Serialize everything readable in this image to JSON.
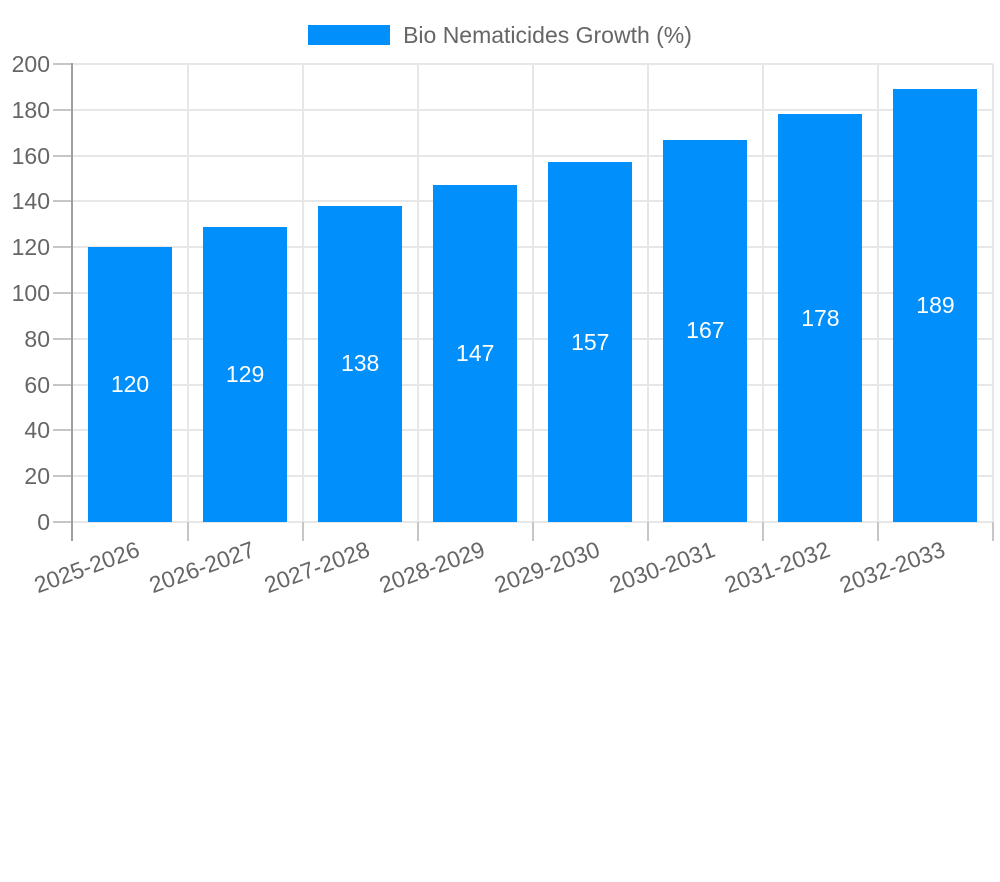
{
  "chart_data": {
    "type": "bar",
    "title": "Bio Nematicides Growth (%)",
    "legend": {
      "label": "Bio Nematicides Growth (%)",
      "position": "top",
      "marker": "rectangle"
    },
    "categories": [
      "2025-2026",
      "2026-2027",
      "2027-2028",
      "2028-2029",
      "2029-2030",
      "2030-2031",
      "2031-2032",
      "2032-2033"
    ],
    "series": [
      {
        "name": "Bio Nematicides Growth (%)",
        "values": [
          120,
          129,
          138,
          147,
          157,
          167,
          178,
          189
        ]
      }
    ],
    "value_labels": [
      "120",
      "129",
      "138",
      "147",
      "157",
      "167",
      "178",
      "189"
    ],
    "xlabel": "",
    "ylabel": "",
    "ylim": [
      0,
      200
    ],
    "y_ticks": [
      0,
      20,
      40,
      60,
      80,
      100,
      120,
      140,
      160,
      180,
      200
    ],
    "grid": "horizontal and vertical category boundaries",
    "x_tick_label_rotation_deg": -20,
    "colors": {
      "bar": "#008FFB",
      "value_label": "#ffffff",
      "axis_text": "#666666",
      "gridline": "#e7e7e7",
      "tick": "#c6c6c6",
      "axis_line": "#9f9f9f",
      "background": "#ffffff"
    }
  }
}
